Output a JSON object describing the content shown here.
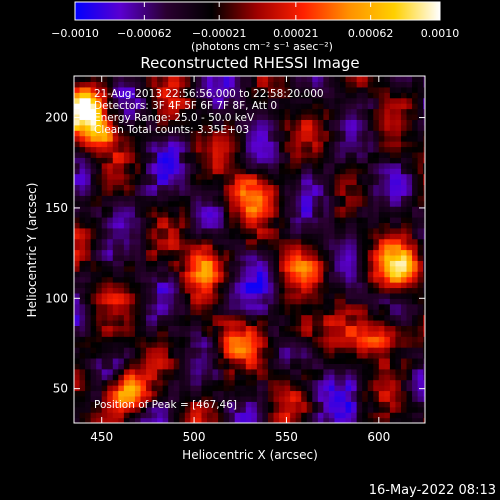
{
  "colorbar": {
    "tick_labels": [
      "−0.0010",
      "−0.00062",
      "−0.00021",
      "0.00021",
      "0.00062",
      "0.0010"
    ],
    "ticks": [
      -0.001,
      -0.00062,
      -0.00021,
      0.00021,
      0.00062,
      0.001
    ],
    "range": [
      -0.001,
      0.001
    ],
    "unit_label": "(photons cm⁻² s⁻¹ asec⁻²)",
    "colors": [
      "#0000ff",
      "#5a00d0",
      "#2a0030",
      "#000000",
      "#a00000",
      "#ff2000",
      "#ff9000",
      "#ffd000",
      "#ffffff"
    ]
  },
  "chart_data": {
    "type": "heatmap",
    "title": "Reconstructed RHESSI Image",
    "xlabel": "Heliocentric X (arcsec)",
    "ylabel": "Heliocentric Y (arcsec)",
    "xlim": [
      435,
      625
    ],
    "ylim": [
      31,
      223
    ],
    "xticks": [
      450,
      500,
      550,
      600
    ],
    "yticks": [
      50,
      100,
      150,
      200
    ],
    "x_tick_labels": [
      "450",
      "500",
      "550",
      "600"
    ],
    "y_tick_labels": [
      "50",
      "100",
      "150",
      "200"
    ],
    "peak": [
      467,
      46
    ],
    "bright_sources": [
      {
        "x": 464,
        "y": 48,
        "flux": 0.001
      },
      {
        "x": 441,
        "y": 205,
        "flux": 0.0009
      },
      {
        "x": 448,
        "y": 190,
        "flux": 0.0006
      },
      {
        "x": 505,
        "y": 120,
        "flux": 0.0006
      },
      {
        "x": 520,
        "y": 78,
        "flux": 0.0005
      },
      {
        "x": 612,
        "y": 118,
        "flux": 0.0008
      },
      {
        "x": 600,
        "y": 80,
        "flux": 0.0007
      },
      {
        "x": 558,
        "y": 84,
        "flux": 0.0004
      },
      {
        "x": 530,
        "y": 158,
        "flux": 0.0005
      },
      {
        "x": 560,
        "y": 116,
        "flux": 0.0003
      }
    ]
  },
  "info": {
    "time_range": "21-Aug-2013 22:56:56.000 to 22:58:20.000",
    "detectors": "Detectors: 3F 4F 5F 6F 7F 8F, Att 0",
    "energy_range": "Energy Range: 25.0 - 50.0 keV",
    "algorithm": "Clean     Total counts: 3.35E+03",
    "peak_text": "Position of Peak = [467,46]"
  },
  "footer": {
    "timestamp": "16-May-2022 08:13"
  }
}
